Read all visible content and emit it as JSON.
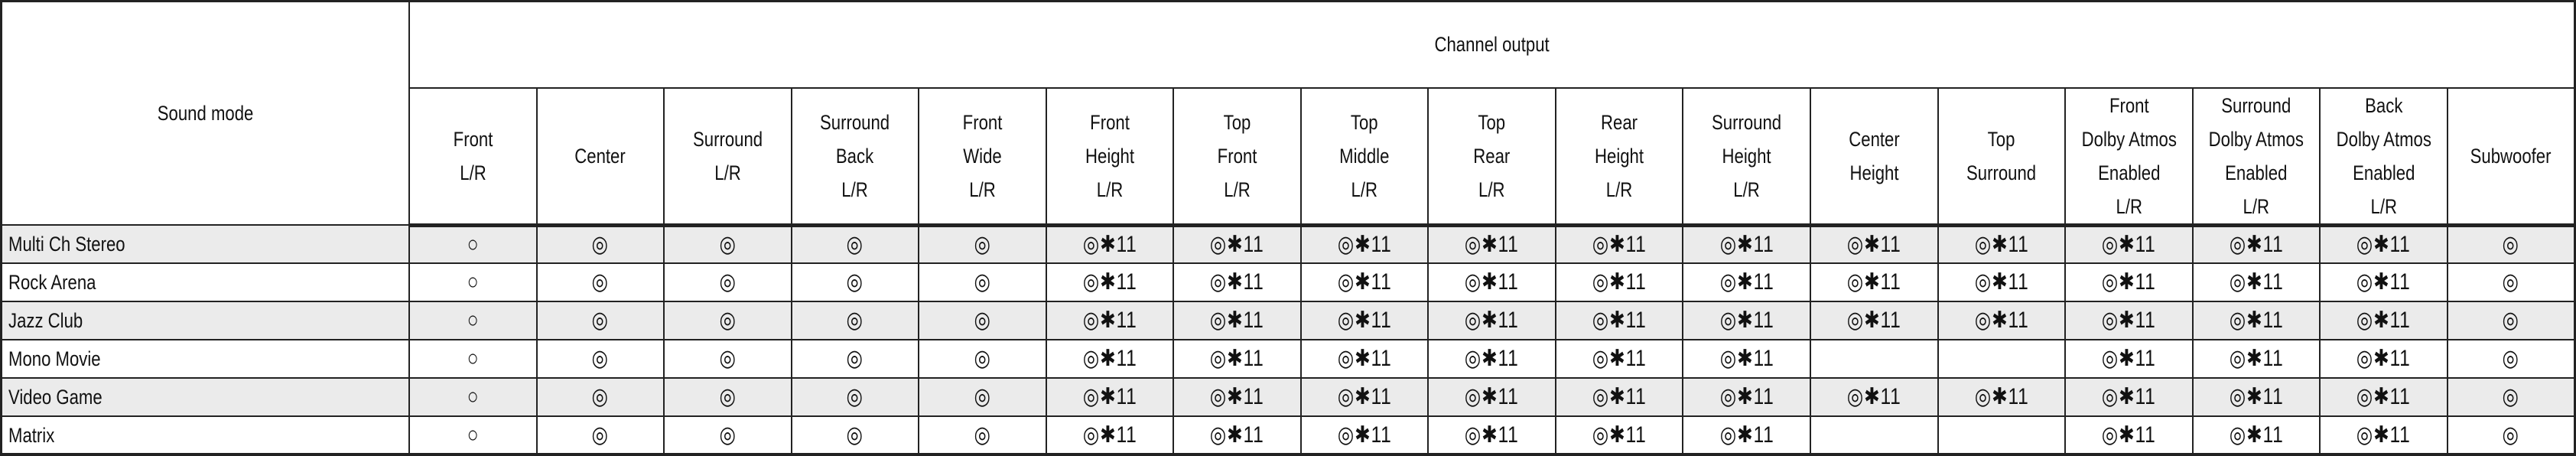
{
  "table": {
    "row_header": "Sound mode",
    "group_header": "Channel output",
    "columns": [
      [
        "Front",
        "L/R"
      ],
      [
        "Center"
      ],
      [
        "Surround",
        "L/R"
      ],
      [
        "Surround",
        "Back",
        "L/R"
      ],
      [
        "Front",
        "Wide",
        "L/R"
      ],
      [
        "Front",
        "Height",
        "L/R"
      ],
      [
        "Top",
        "Front",
        "L/R"
      ],
      [
        "Top",
        "Middle",
        "L/R"
      ],
      [
        "Top",
        "Rear",
        "L/R"
      ],
      [
        "Rear",
        "Height",
        "L/R"
      ],
      [
        "Surround",
        "Height",
        "L/R"
      ],
      [
        "Center",
        "Height"
      ],
      [
        "Top",
        "Surround"
      ],
      [
        "Front",
        "Dolby Atmos",
        "Enabled",
        "L/R"
      ],
      [
        "Surround",
        "Dolby Atmos",
        "Enabled",
        "L/R"
      ],
      [
        "Back",
        "Dolby Atmos",
        "Enabled",
        "L/R"
      ],
      [
        "Subwoofer"
      ]
    ],
    "rows": [
      {
        "mode": "Multi Ch Stereo",
        "cells": [
          "○",
          "◎",
          "◎",
          "◎",
          "◎",
          "◎✱11",
          "◎✱11",
          "◎✱11",
          "◎✱11",
          "◎✱11",
          "◎✱11",
          "◎✱11",
          "◎✱11",
          "◎✱11",
          "◎✱11",
          "◎✱11",
          "◎"
        ]
      },
      {
        "mode": "Rock Arena",
        "cells": [
          "○",
          "◎",
          "◎",
          "◎",
          "◎",
          "◎✱11",
          "◎✱11",
          "◎✱11",
          "◎✱11",
          "◎✱11",
          "◎✱11",
          "◎✱11",
          "◎✱11",
          "◎✱11",
          "◎✱11",
          "◎✱11",
          "◎"
        ]
      },
      {
        "mode": "Jazz Club",
        "cells": [
          "○",
          "◎",
          "◎",
          "◎",
          "◎",
          "◎✱11",
          "◎✱11",
          "◎✱11",
          "◎✱11",
          "◎✱11",
          "◎✱11",
          "◎✱11",
          "◎✱11",
          "◎✱11",
          "◎✱11",
          "◎✱11",
          "◎"
        ]
      },
      {
        "mode": "Mono Movie",
        "cells": [
          "○",
          "◎",
          "◎",
          "◎",
          "◎",
          "◎✱11",
          "◎✱11",
          "◎✱11",
          "◎✱11",
          "◎✱11",
          "◎✱11",
          "",
          "",
          "◎✱11",
          "◎✱11",
          "◎✱11",
          "◎"
        ]
      },
      {
        "mode": "Video Game",
        "cells": [
          "○",
          "◎",
          "◎",
          "◎",
          "◎",
          "◎✱11",
          "◎✱11",
          "◎✱11",
          "◎✱11",
          "◎✱11",
          "◎✱11",
          "◎✱11",
          "◎✱11",
          "◎✱11",
          "◎✱11",
          "◎✱11",
          "◎"
        ]
      },
      {
        "mode": "Matrix",
        "cells": [
          "○",
          "◎",
          "◎",
          "◎",
          "◎",
          "◎✱11",
          "◎✱11",
          "◎✱11",
          "◎✱11",
          "◎✱11",
          "◎✱11",
          "",
          "",
          "◎✱11",
          "◎✱11",
          "◎✱11",
          "◎"
        ]
      }
    ]
  }
}
